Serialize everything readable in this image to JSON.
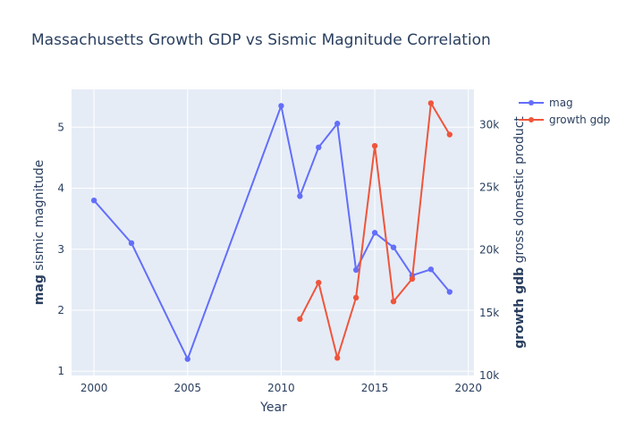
{
  "chart_data": {
    "type": "line",
    "title": "Massachusetts Growth GDP vs Sismic Magnitude Correlation",
    "xlabel": "Year",
    "ylabel_left": {
      "bold": "mag",
      "rest": " sismic magnitude"
    },
    "ylabel_right": {
      "bold": "growth gdb",
      "rest": " gross domestic product"
    },
    "x_ticks": [
      2000,
      2005,
      2010,
      2015,
      2020
    ],
    "y_left_ticks": [
      1,
      2,
      3,
      4,
      5
    ],
    "y_right_ticks": [
      "10k",
      "15k",
      "20k",
      "25k",
      "30k"
    ],
    "xlim": [
      1998.8,
      2020.3
    ],
    "ylim_left": [
      0.93,
      5.62
    ],
    "ylim_right": [
      10000,
      32800
    ],
    "grid": true,
    "legend_position": "top-right",
    "series": [
      {
        "name": "mag",
        "axis": "left",
        "color": "#636efa",
        "x": [
          2000,
          2002,
          2005,
          2010,
          2011,
          2012,
          2013,
          2014,
          2015,
          2016,
          2017,
          2018,
          2019
        ],
        "y": [
          3.8,
          3.1,
          1.2,
          5.35,
          3.87,
          4.67,
          5.06,
          2.66,
          3.27,
          3.03,
          2.57,
          2.67,
          2.3
        ]
      },
      {
        "name": "growth gdp",
        "axis": "right",
        "color": "#ef553b",
        "x": [
          2011,
          2012,
          2013,
          2014,
          2015,
          2016,
          2017,
          2018,
          2019
        ],
        "y": [
          14500,
          17400,
          11400,
          16200,
          28300,
          15900,
          17700,
          31700,
          29200
        ]
      }
    ]
  }
}
